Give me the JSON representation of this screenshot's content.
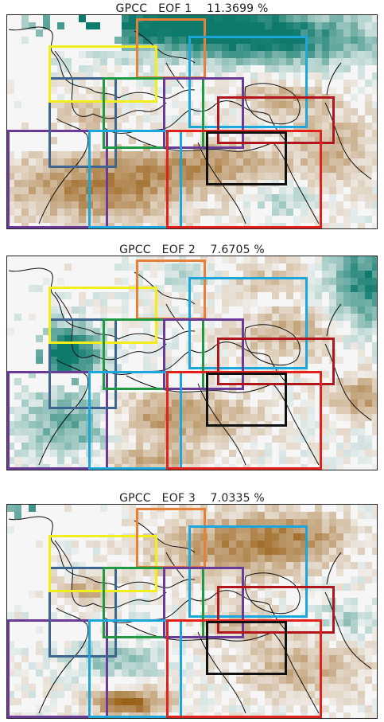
{
  "panels": [
    {
      "title": "GPCC   EOF 1    11.3699 %",
      "pattern": "eof1"
    },
    {
      "title": "GPCC   EOF 2    7.6705 %",
      "pattern": "eof2"
    },
    {
      "title": "GPCC   EOF 3    7.0335 %",
      "pattern": "eof3"
    }
  ],
  "region_box_colors": [
    {
      "name": "orange",
      "color": "#e8803a"
    },
    {
      "name": "yellow",
      "color": "#f2ee1c"
    },
    {
      "name": "light-blue",
      "color": "#1ba7dc"
    },
    {
      "name": "dark-blue",
      "color": "#3c6690"
    },
    {
      "name": "green",
      "color": "#1f9a43"
    },
    {
      "name": "purple",
      "color": "#6a3a98"
    },
    {
      "name": "dark-red",
      "color": "#b0161c"
    },
    {
      "name": "red",
      "color": "#e3201b"
    },
    {
      "name": "black",
      "color": "#111111"
    }
  ],
  "color_scale": {
    "positive": "#0d7a6b",
    "negative": "#9a6118",
    "neutral": "#f6f6f6"
  }
}
